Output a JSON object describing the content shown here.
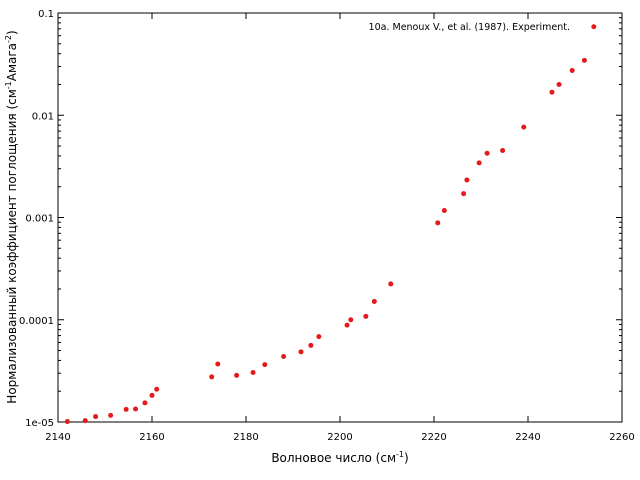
{
  "chart_data": {
    "type": "scatter",
    "xlabel": {
      "main": "Волновое число (см",
      "sup": "-1",
      "end": ")"
    },
    "ylabel": {
      "main": "Нормализованный коэффициент поглощения (см",
      "sup1": "-1",
      "mid": "Амага",
      "sup2": "-2",
      "end": ")"
    },
    "x_ticks": [
      2140,
      2160,
      2180,
      2200,
      2220,
      2240,
      2260
    ],
    "x_tick_labels": [
      "2140",
      "2160",
      "2180",
      "2200",
      "2220",
      "2240",
      "2260"
    ],
    "y_ticks": [
      1e-05,
      0.0001,
      0.001,
      0.01,
      0.1
    ],
    "y_tick_labels": [
      "1e-05",
      "0.0001",
      "0.001",
      "0.01",
      "0.1"
    ],
    "xlim": [
      2140,
      2260
    ],
    "ylim": [
      1e-05,
      0.1
    ],
    "yscale": "log",
    "grid": false,
    "legend_position": "top-right",
    "series": [
      {
        "name": "10a. Menoux V., et al. (1987). Experiment.",
        "color": "#e41a1c",
        "x": [
          2142.0,
          2145.8,
          2148.0,
          2151.2,
          2154.5,
          2156.5,
          2158.5,
          2160.0,
          2161.0,
          2172.7,
          2174.0,
          2178.0,
          2181.5,
          2184.0,
          2188.0,
          2191.7,
          2193.8,
          2195.5,
          2201.5,
          2202.3,
          2205.5,
          2207.3,
          2210.8,
          2220.8,
          2222.2,
          2226.3,
          2227.0,
          2229.6,
          2231.3,
          2234.6,
          2239.1,
          2245.1,
          2246.6,
          2249.4,
          2252.0,
          2254.0
        ],
        "y": [
          1.01e-05,
          1.03e-05,
          1.13e-05,
          1.16e-05,
          1.33e-05,
          1.34e-05,
          1.54e-05,
          1.82e-05,
          2.09e-05,
          2.76e-05,
          3.69e-05,
          2.86e-05,
          3.05e-05,
          3.64e-05,
          4.37e-05,
          4.85e-05,
          5.62e-05,
          6.84e-05,
          8.86e-05,
          0.0001,
          0.000108,
          0.000151,
          0.000224,
          0.000886,
          0.00117,
          0.00171,
          0.00233,
          0.00342,
          0.00425,
          0.00452,
          0.00765,
          0.0168,
          0.02,
          0.0274,
          0.0344,
          0.0734
        ]
      }
    ]
  }
}
